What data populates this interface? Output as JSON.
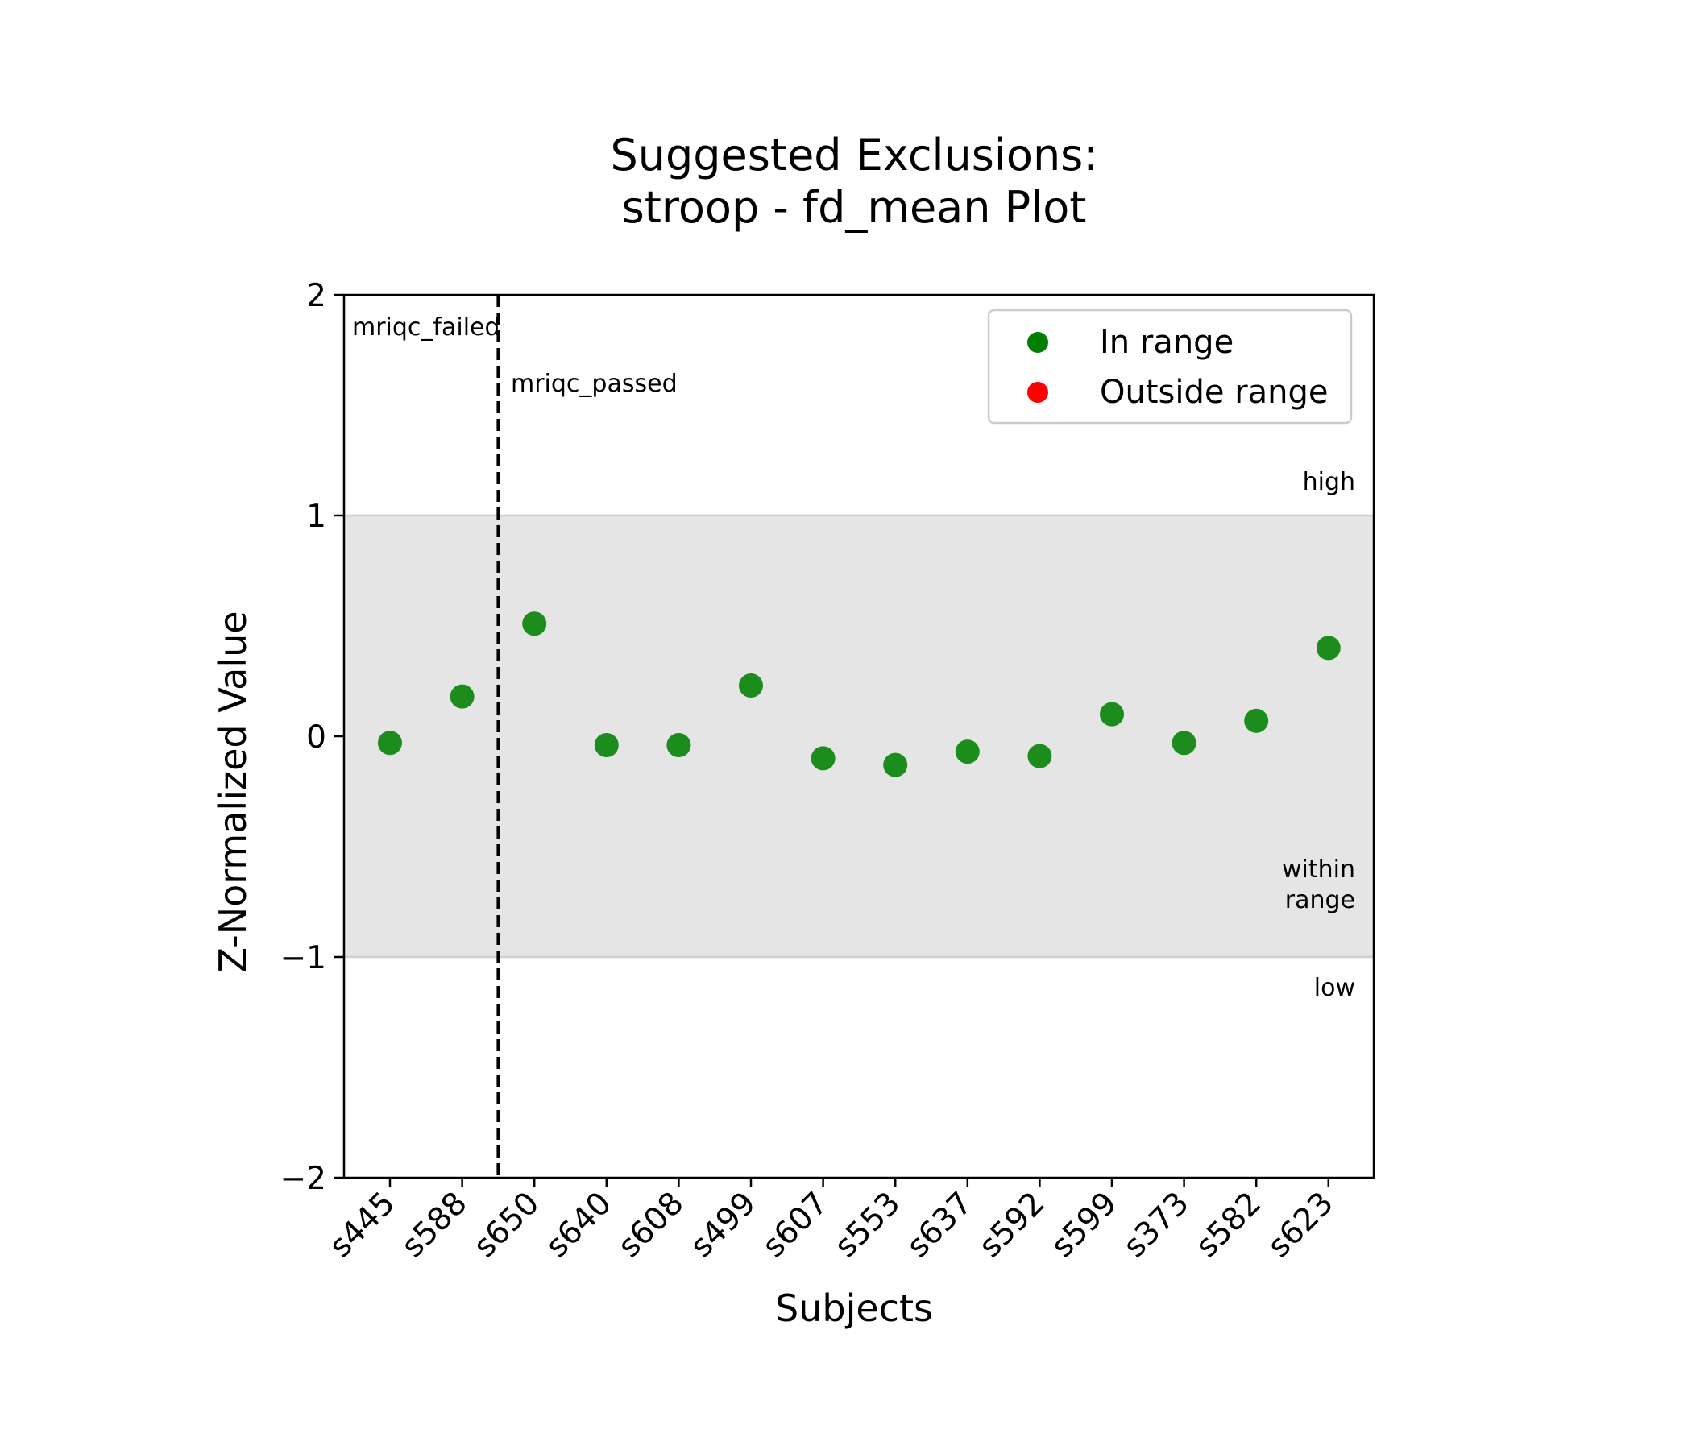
{
  "chart_data": {
    "type": "scatter",
    "title_line1": "Suggested Exclusions:",
    "title_line2": "stroop - fd_mean Plot",
    "xlabel": "Subjects",
    "ylabel": "Z-Normalized Value",
    "ylim": [
      -2,
      2
    ],
    "yticks": [
      {
        "value": 2,
        "label": "2"
      },
      {
        "value": 1,
        "label": "1"
      },
      {
        "value": 0,
        "label": "0"
      },
      {
        "value": -1,
        "label": "−1"
      },
      {
        "value": -2,
        "label": "−2"
      }
    ],
    "categories": [
      "s445",
      "s588",
      "s650",
      "s640",
      "s608",
      "s499",
      "s607",
      "s553",
      "s637",
      "s592",
      "s599",
      "s373",
      "s582",
      "s623"
    ],
    "series": [
      {
        "name": "In range",
        "color": "#008000",
        "values": [
          -0.03,
          0.18,
          0.51,
          -0.04,
          -0.04,
          0.23,
          -0.1,
          -0.13,
          -0.07,
          -0.09,
          0.1,
          -0.03,
          0.07,
          0.4
        ]
      },
      {
        "name": "Outside range",
        "color": "#ff0000",
        "values": []
      }
    ],
    "range_band": {
      "low": -1,
      "high": 1,
      "color": "#e5e5e5"
    },
    "group_divider": {
      "after_category_index": 1,
      "style": "dashed"
    },
    "annotations": {
      "left_group": "mriqc_failed",
      "right_group": "mriqc_passed",
      "high": "high",
      "within_line1": "within",
      "within_line2": "range",
      "low": "low"
    },
    "legend_position": "upper right",
    "grid": false
  }
}
